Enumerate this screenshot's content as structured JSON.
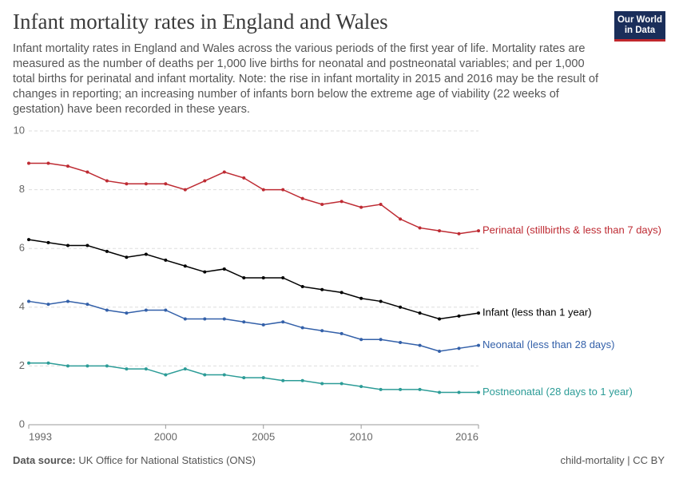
{
  "logo": [
    "Our World",
    "in Data"
  ],
  "chart_data": {
    "type": "line",
    "title": "Infant mortality rates in England and Wales",
    "subtitle": "Infant mortality rates in England and Wales across the various periods of the first year of life. Mortality rates are measured as the number of deaths per 1,000 live births for neonatal and postneonatal variables; and per 1,000 total births for perinatal and infant mortality. Note: the rise in infant mortality in 2015 and 2016 may be the result of changes in reporting; an increasing number of infants born below the extreme age of viability (22 weeks of gestation) have been recorded in these years.",
    "source_label": "Data source:",
    "source": "UK Office for National Statistics (ONS)",
    "license": "child-mortality | CC BY",
    "x": [
      1993,
      1994,
      1995,
      1996,
      1997,
      1998,
      1999,
      2000,
      2001,
      2002,
      2003,
      2004,
      2005,
      2006,
      2007,
      2008,
      2009,
      2010,
      2011,
      2012,
      2013,
      2014,
      2015,
      2016
    ],
    "xlim": [
      1993,
      2016
    ],
    "xticks": [
      1993,
      2000,
      2005,
      2010,
      2016
    ],
    "ylim": [
      0,
      10
    ],
    "yticks": [
      0,
      2,
      4,
      6,
      8,
      10
    ],
    "grid": true,
    "series": [
      {
        "name": "Perinatal (stillbirths & less than 7 days)",
        "color": "#be2b33",
        "values": [
          8.9,
          8.9,
          8.8,
          8.6,
          8.3,
          8.2,
          8.2,
          8.2,
          8.0,
          8.3,
          8.6,
          8.4,
          8.0,
          8.0,
          7.7,
          7.5,
          7.6,
          7.4,
          7.5,
          7.0,
          6.7,
          6.6,
          6.5,
          6.6
        ]
      },
      {
        "name": "Infant (less than 1 year)",
        "color": "#000000",
        "values": [
          6.3,
          6.2,
          6.1,
          6.1,
          5.9,
          5.7,
          5.8,
          5.6,
          5.4,
          5.2,
          5.3,
          5.0,
          5.0,
          5.0,
          4.7,
          4.6,
          4.5,
          4.3,
          4.2,
          4.0,
          3.8,
          3.6,
          3.7,
          3.8
        ]
      },
      {
        "name": "Neonatal (less than 28 days)",
        "color": "#3360a9",
        "values": [
          4.2,
          4.1,
          4.2,
          4.1,
          3.9,
          3.8,
          3.9,
          3.9,
          3.6,
          3.6,
          3.6,
          3.5,
          3.4,
          3.5,
          3.3,
          3.2,
          3.1,
          2.9,
          2.9,
          2.8,
          2.7,
          2.5,
          2.6,
          2.7
        ]
      },
      {
        "name": "Postneonatal (28 days to 1 year)",
        "color": "#2c9c97",
        "values": [
          2.1,
          2.1,
          2.0,
          2.0,
          2.0,
          1.9,
          1.9,
          1.7,
          1.9,
          1.7,
          1.7,
          1.6,
          1.6,
          1.5,
          1.5,
          1.4,
          1.4,
          1.3,
          1.2,
          1.2,
          1.2,
          1.1,
          1.1,
          1.1
        ]
      }
    ]
  }
}
